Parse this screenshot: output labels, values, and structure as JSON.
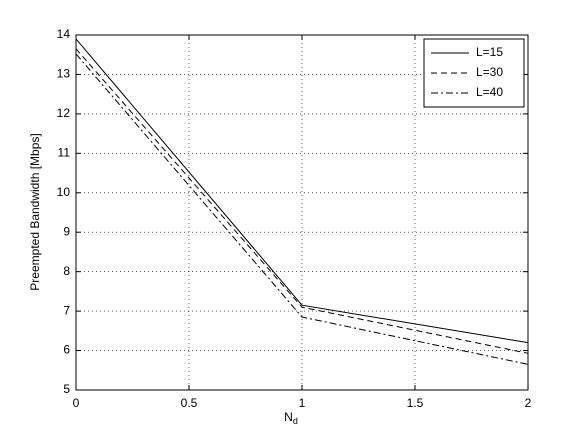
{
  "chart_data": {
    "type": "line",
    "xlabel": {
      "main": "N",
      "subscript": "d"
    },
    "ylabel": "Preempted Bandwidth [Mbps]",
    "x": [
      0,
      1,
      2
    ],
    "series": [
      {
        "name": "L=15",
        "color": "#000000",
        "dash": "solid",
        "values": [
          13.9,
          7.15,
          6.2
        ]
      },
      {
        "name": "L=30",
        "color": "#000000",
        "dash": "dashed",
        "values": [
          13.65,
          7.1,
          5.93
        ]
      },
      {
        "name": "L=40",
        "color": "#000000",
        "dash": "dashdot",
        "values": [
          13.52,
          6.85,
          5.65
        ]
      }
    ],
    "xlim": [
      0,
      2
    ],
    "xticks": [
      0,
      0.5,
      1,
      1.5,
      2
    ],
    "ylim": [
      5,
      14
    ],
    "yticks": [
      5,
      6,
      7,
      8,
      9,
      10,
      11,
      12,
      13,
      14
    ],
    "grid": true,
    "legend": "northeast"
  }
}
